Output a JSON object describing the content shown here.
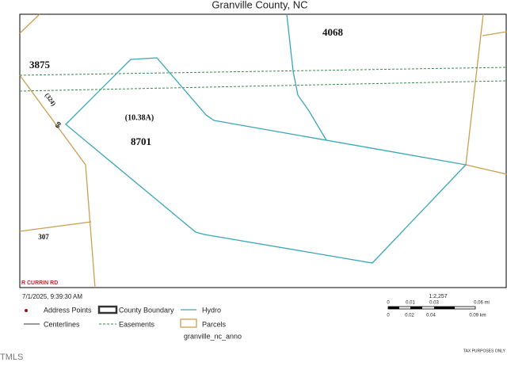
{
  "header": {
    "title": "Granville County, NC"
  },
  "map_labels": {
    "parcel_4068": "4068",
    "parcel_3875": "3875",
    "road_324": "(324)",
    "road_60": "60",
    "acreage": "(10.38A)",
    "parcel_8701": "8701",
    "parcel_307": "307",
    "road_name": "R CURRIN RD"
  },
  "timestamp": "7/1/2025, 9:39:30 AM",
  "legend": {
    "address_points": "Address Points",
    "county_boundary": "County Boundary",
    "hydro": "Hydro",
    "centerlines": "Centerlines",
    "easements": "Easements",
    "parcels": "Parcels",
    "anno": "granville_nc_anno"
  },
  "scale": {
    "ratio": "1:2,257",
    "mi_ticks": [
      "0",
      "0.01",
      "0.03",
      "0.06 mi"
    ],
    "km_ticks": [
      "0",
      "0.02",
      "0.04",
      "0.09 km"
    ]
  },
  "footer": {
    "disclaimer": "TAX PURPOSES ONLY",
    "logo": "TMLS"
  }
}
